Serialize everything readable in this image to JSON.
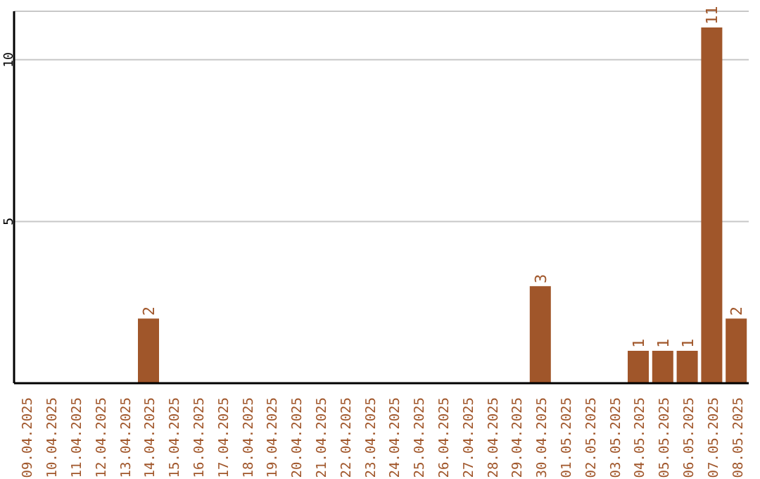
{
  "chart_data": {
    "type": "bar",
    "categories": [
      "09.04.2025",
      "10.04.2025",
      "11.04.2025",
      "12.04.2025",
      "13.04.2025",
      "14.04.2025",
      "15.04.2025",
      "16.04.2025",
      "17.04.2025",
      "18.04.2025",
      "19.04.2025",
      "20.04.2025",
      "21.04.2025",
      "22.04.2025",
      "23.04.2025",
      "24.04.2025",
      "25.04.2025",
      "26.04.2025",
      "27.04.2025",
      "28.04.2025",
      "29.04.2025",
      "30.04.2025",
      "01.05.2025",
      "02.05.2025",
      "03.05.2025",
      "04.05.2025",
      "05.05.2025",
      "06.05.2025",
      "07.05.2025",
      "08.05.2025"
    ],
    "values": [
      0,
      0,
      0,
      0,
      0,
      2,
      0,
      0,
      0,
      0,
      0,
      0,
      0,
      0,
      0,
      0,
      0,
      0,
      0,
      0,
      0,
      3,
      0,
      0,
      0,
      1,
      1,
      1,
      11,
      2
    ],
    "value_labels": [
      null,
      null,
      null,
      null,
      null,
      "2",
      null,
      null,
      null,
      null,
      null,
      null,
      null,
      null,
      null,
      null,
      null,
      null,
      null,
      null,
      null,
      "3",
      null,
      null,
      null,
      "1",
      "1",
      "1",
      "11",
      "2"
    ],
    "color": "#a0562a",
    "ylim": [
      0,
      11.5
    ],
    "yticks": [
      5,
      10
    ],
    "grid": "y"
  }
}
